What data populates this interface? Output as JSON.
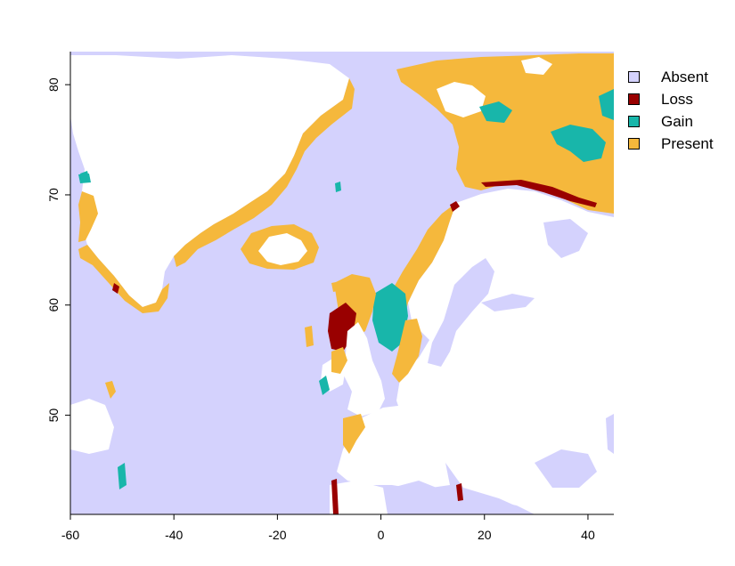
{
  "map": {
    "xlim": [
      -60,
      45
    ],
    "ylim": [
      41,
      83
    ],
    "x_ticks": [
      -60,
      -40,
      -20,
      0,
      20,
      40
    ],
    "y_ticks": [
      50,
      60,
      70,
      80
    ]
  },
  "legend": {
    "items": [
      {
        "label": "Absent",
        "color": "#d4d2fd"
      },
      {
        "label": "Loss",
        "color": "#990000"
      },
      {
        "label": "Gain",
        "color": "#18b6aa"
      },
      {
        "label": "Present",
        "color": "#f5b83c"
      }
    ]
  },
  "colors": {
    "absent": "#d4d2fd",
    "loss": "#990000",
    "gain": "#18b6aa",
    "present": "#f5b83c",
    "land": "#ffffff"
  }
}
